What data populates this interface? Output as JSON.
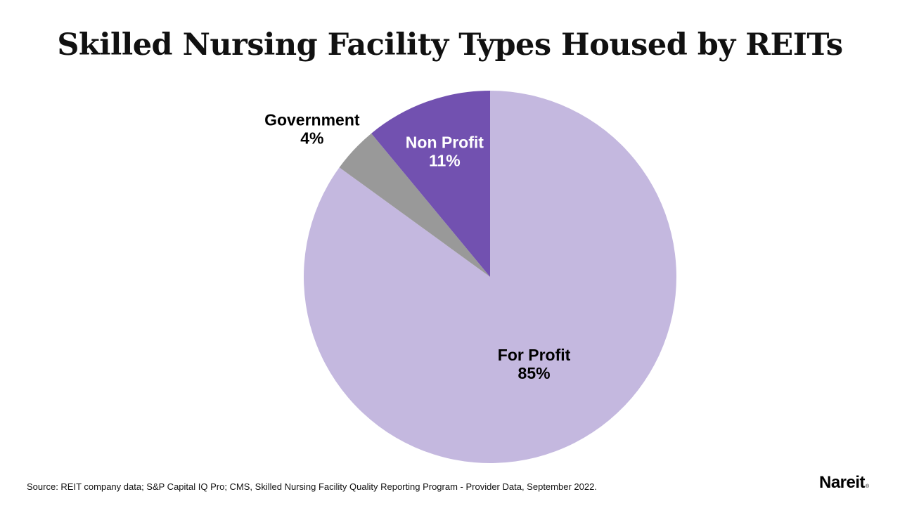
{
  "title": "Skilled Nursing Facility Types Housed by REITs",
  "source": "Source: REIT company data; S&P Capital IQ Pro; CMS, Skilled Nursing Facility Quality Reporting Program - Provider Data, September 2022.",
  "logo": {
    "text": "Nareit",
    "mark": "®"
  },
  "colors": {
    "for_profit": "#c4b8df",
    "non_profit": "#7251b0",
    "government": "#999999",
    "label_dark": "#000000",
    "label_light": "#ffffff"
  },
  "chart_data": {
    "type": "pie",
    "title": "Skilled Nursing Facility Types Housed by REITs",
    "start": "12 o'clock",
    "direction": "clockwise",
    "legend": "none",
    "slices": [
      {
        "name": "For Profit",
        "value": 85,
        "label": "85%",
        "color": "#c4b8df",
        "label_color": "#000000"
      },
      {
        "name": "Government",
        "value": 4,
        "label": "4%",
        "color": "#999999",
        "label_color": "#000000"
      },
      {
        "name": "Non Profit",
        "value": 11,
        "label": "11%",
        "color": "#7251b0",
        "label_color": "#ffffff"
      }
    ]
  }
}
